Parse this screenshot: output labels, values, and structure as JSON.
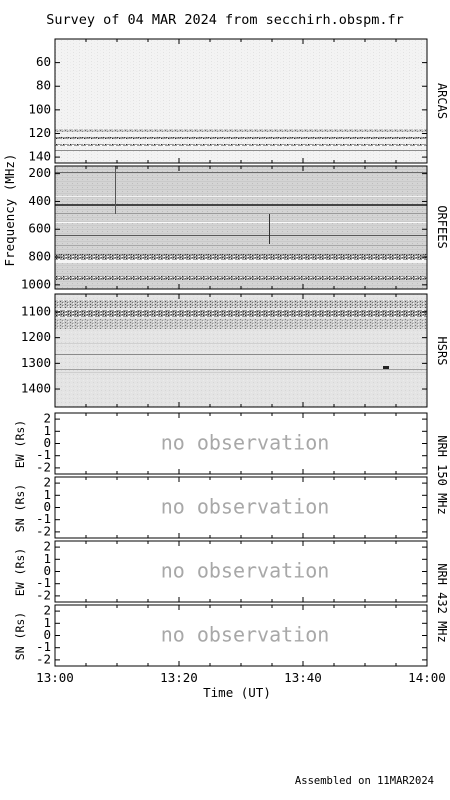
{
  "title": "Survey of 04 MAR 2024 from secchirh.obspm.fr",
  "footer": "Assembled on 11MAR2024",
  "colors": {
    "no_observation_text": "#a8a8a8",
    "axes": "#000000",
    "background": "#ffffff"
  },
  "chart_data": [
    {
      "type": "heatmap",
      "name": "ARCAS",
      "ylabel": "",
      "ylim": [
        40,
        145
      ],
      "yticks": [
        "60",
        "80",
        "100",
        "120",
        "140"
      ],
      "ytick_values": [
        60,
        80,
        100,
        120,
        140
      ],
      "grid": false
    },
    {
      "type": "heatmap",
      "name": "ORFEES",
      "ylabel": "Frequency (MHz)",
      "ylim": [
        145,
        1030
      ],
      "yticks": [
        "200",
        "400",
        "600",
        "800",
        "1000"
      ],
      "ytick_values": [
        200,
        400,
        600,
        800,
        1000
      ],
      "grid": false
    },
    {
      "type": "heatmap",
      "name": "HSRS",
      "ylabel": "",
      "ylim": [
        1030,
        1470
      ],
      "yticks": [
        "1100",
        "1200",
        "1300",
        "1400"
      ],
      "ytick_values": [
        1100,
        1200,
        1300,
        1400
      ],
      "grid": false
    },
    {
      "type": "line",
      "instrument_label": "NRH 150 MHz",
      "panels": [
        {
          "ylabel": "EW (Rs)",
          "ylim": [
            -2.5,
            2.5
          ],
          "yticks": [
            "2",
            "1",
            "0",
            "-1",
            "-2"
          ],
          "ytick_values": [
            2,
            1,
            0,
            -1,
            -2
          ],
          "annotation": "no observation",
          "series": []
        },
        {
          "ylabel": "SN (Rs)",
          "ylim": [
            -2.5,
            2.5
          ],
          "yticks": [
            "2",
            "1",
            "0",
            "-1",
            "-2"
          ],
          "ytick_values": [
            2,
            1,
            0,
            -1,
            -2
          ],
          "annotation": "no observation",
          "series": []
        }
      ]
    },
    {
      "type": "line",
      "instrument_label": "NRH 432 MHz",
      "panels": [
        {
          "ylabel": "EW (Rs)",
          "ylim": [
            -2.5,
            2.5
          ],
          "yticks": [
            "2",
            "1",
            "0",
            "-1",
            "-2"
          ],
          "ytick_values": [
            2,
            1,
            0,
            -1,
            -2
          ],
          "annotation": "no observation",
          "series": []
        },
        {
          "ylabel": "SN (Rs)",
          "ylim": [
            -2.5,
            2.5
          ],
          "yticks": [
            "2",
            "1",
            "0",
            "-1",
            "-2"
          ],
          "ytick_values": [
            2,
            1,
            0,
            -1,
            -2
          ],
          "annotation": "no observation",
          "series": []
        }
      ]
    }
  ],
  "xaxis": {
    "label": "Time (UT)",
    "xlim": [
      "13:00",
      "14:00"
    ],
    "ticks": [
      "13:00",
      "13:20",
      "13:40",
      "14:00"
    ]
  }
}
